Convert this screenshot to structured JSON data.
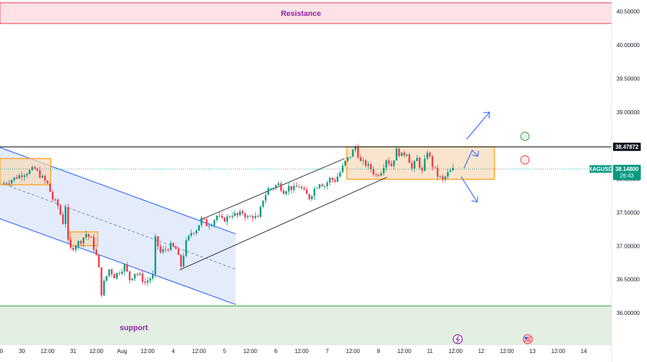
{
  "chart_data": {
    "type": "candlestick",
    "symbol": "XAGUSD",
    "last_price": "38.14800",
    "countdown": "26:43",
    "level_price_label": "38.47872",
    "level_price": 38.47872,
    "ylim": [
      35.5,
      40.65
    ],
    "y_ticks": [
      {
        "v": 40.5,
        "label": "40.50000"
      },
      {
        "v": 40.0,
        "label": "40.00000"
      },
      {
        "v": 39.5,
        "label": "39.50000"
      },
      {
        "v": 39.0,
        "label": "39.00000"
      },
      {
        "v": 38.5,
        "label": "38.50000"
      },
      {
        "v": 38.0,
        "label": "38.00000"
      },
      {
        "v": 37.5,
        "label": "37.50000"
      },
      {
        "v": 37.0,
        "label": "37.00000"
      },
      {
        "v": 36.5,
        "label": "36.50000"
      },
      {
        "v": 36.0,
        "label": "36.00000"
      }
    ],
    "x_ticks": [
      {
        "i": 0,
        "label": "0"
      },
      {
        "i": 8,
        "label": "30"
      },
      {
        "i": 18,
        "label": "12:00"
      },
      {
        "i": 28,
        "label": "31"
      },
      {
        "i": 37,
        "label": "12:00"
      },
      {
        "i": 47,
        "label": "Aug"
      },
      {
        "i": 57,
        "label": "12:00"
      },
      {
        "i": 67,
        "label": "4"
      },
      {
        "i": 77,
        "label": "12:00"
      },
      {
        "i": 87,
        "label": "5"
      },
      {
        "i": 97,
        "label": "12:00"
      },
      {
        "i": 107,
        "label": "6"
      },
      {
        "i": 117,
        "label": "12:00"
      },
      {
        "i": 127,
        "label": "7"
      },
      {
        "i": 137,
        "label": "12:00"
      },
      {
        "i": 147,
        "label": "8"
      },
      {
        "i": 157,
        "label": "12:00"
      },
      {
        "i": 167,
        "label": "11"
      },
      {
        "i": 177,
        "label": "12:00"
      },
      {
        "i": 187,
        "label": "12"
      },
      {
        "i": 197,
        "label": "12:00"
      },
      {
        "i": 207,
        "label": "13"
      },
      {
        "i": 217,
        "label": "12:00"
      },
      {
        "i": 227,
        "label": "14"
      }
    ],
    "close_path": [
      [
        0,
        37.92
      ],
      [
        3,
        37.97
      ],
      [
        8,
        38.07
      ],
      [
        13,
        38.15
      ],
      [
        18,
        37.92
      ],
      [
        20,
        37.7
      ],
      [
        22,
        37.6
      ],
      [
        24,
        37.35
      ],
      [
        25,
        37.6
      ],
      [
        26,
        37.05
      ],
      [
        27,
        36.95
      ],
      [
        29,
        37.02
      ],
      [
        31,
        37.08
      ],
      [
        33,
        37.18
      ],
      [
        35,
        37.1
      ],
      [
        37,
        36.85
      ],
      [
        38,
        36.65
      ],
      [
        39,
        36.3
      ],
      [
        40,
        36.45
      ],
      [
        42,
        36.65
      ],
      [
        44,
        36.55
      ],
      [
        46,
        36.62
      ],
      [
        48,
        36.7
      ],
      [
        50,
        36.5
      ],
      [
        52,
        36.6
      ],
      [
        54,
        36.55
      ],
      [
        56,
        36.45
      ],
      [
        58,
        36.52
      ],
      [
        59,
        36.55
      ],
      [
        60,
        37.1
      ],
      [
        62,
        36.9
      ],
      [
        64,
        36.95
      ],
      [
        66,
        37.0
      ],
      [
        68,
        36.95
      ],
      [
        70,
        36.7
      ],
      [
        72,
        37.05
      ],
      [
        74,
        37.2
      ],
      [
        76,
        37.25
      ],
      [
        78,
        37.4
      ],
      [
        80,
        37.32
      ],
      [
        82,
        37.35
      ],
      [
        84,
        37.45
      ],
      [
        86,
        37.38
      ],
      [
        88,
        37.42
      ],
      [
        90,
        37.48
      ],
      [
        92,
        37.45
      ],
      [
        94,
        37.5
      ],
      [
        96,
        37.42
      ],
      [
        98,
        37.45
      ],
      [
        100,
        37.4
      ],
      [
        102,
        37.7
      ],
      [
        104,
        37.85
      ],
      [
        106,
        37.88
      ],
      [
        108,
        37.92
      ],
      [
        110,
        37.82
      ],
      [
        112,
        37.88
      ],
      [
        114,
        37.85
      ],
      [
        116,
        37.9
      ],
      [
        118,
        37.8
      ],
      [
        120,
        37.72
      ],
      [
        122,
        37.85
      ],
      [
        124,
        37.95
      ],
      [
        126,
        37.9
      ],
      [
        128,
        38.0
      ],
      [
        130,
        37.98
      ],
      [
        132,
        38.1
      ],
      [
        134,
        38.25
      ],
      [
        136,
        38.35
      ],
      [
        138,
        38.48
      ],
      [
        140,
        38.25
      ],
      [
        142,
        38.22
      ],
      [
        144,
        38.15
      ],
      [
        146,
        38.05
      ],
      [
        148,
        38.12
      ],
      [
        150,
        38.3
      ],
      [
        152,
        38.2
      ],
      [
        154,
        38.42
      ],
      [
        156,
        38.35
      ],
      [
        158,
        38.4
      ],
      [
        160,
        38.15
      ],
      [
        162,
        38.3
      ],
      [
        164,
        38.1
      ],
      [
        166,
        38.42
      ],
      [
        168,
        38.2
      ],
      [
        170,
        38.05
      ],
      [
        172,
        37.98
      ],
      [
        174,
        38.08
      ],
      [
        176,
        38.14
      ]
    ],
    "zones": {
      "resistance": {
        "label": "Resistance",
        "from": 40.3,
        "to": 40.62
      },
      "support": {
        "label": "support",
        "from": 35.5,
        "to": 36.1
      }
    },
    "markers": {
      "lightning_icon": "lightning-icon",
      "flag_icon": "us-flag-icon",
      "green_circle_color": "#4caf50",
      "red_circle_color": "#ef5350"
    },
    "colors": {
      "up": "#089981",
      "down": "#f23645",
      "accent_blue": "#2962ff",
      "orange": "#ff9800",
      "price_tag": "#089981",
      "level_tag": "#131722"
    }
  }
}
